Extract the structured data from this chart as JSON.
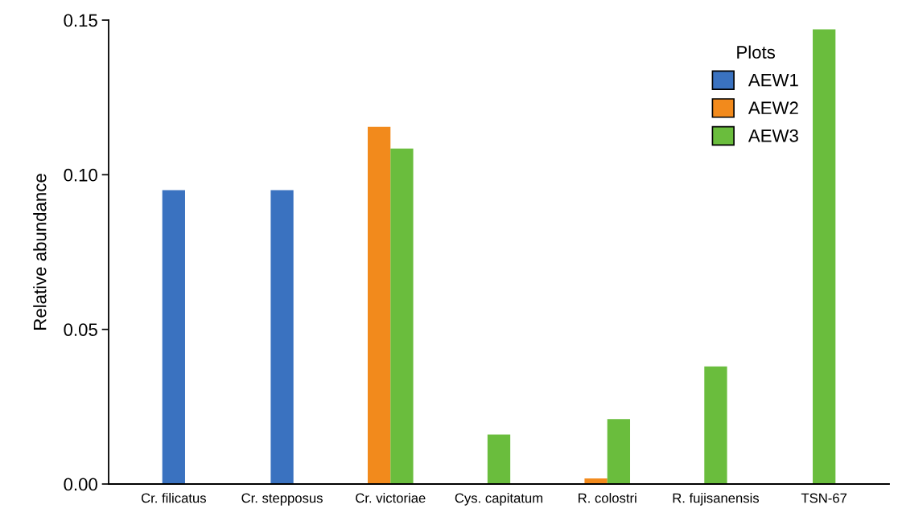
{
  "chart_data": {
    "type": "bar",
    "ylabel": "Relative abundance",
    "legend_title": "Plots",
    "legend": "top right",
    "categories": [
      "Cr. filicatus",
      "Cr. stepposus",
      "Cr. victoriae",
      "Cys. capitatum",
      "R. colostri",
      "R. fujisanensis",
      "TSN-67"
    ],
    "series": [
      {
        "name": "AEW1",
        "color": "#3a72c0",
        "values": [
          0.095,
          0.095,
          null,
          null,
          null,
          null,
          null
        ]
      },
      {
        "name": "AEW2",
        "color": "#f28a1c",
        "values": [
          null,
          null,
          0.1155,
          null,
          0.0018,
          null,
          null
        ]
      },
      {
        "name": "AEW3",
        "color": "#6abd3d",
        "values": [
          null,
          null,
          0.1085,
          0.016,
          0.021,
          0.038,
          0.147
        ]
      }
    ],
    "ylim": [
      0,
      0.15
    ],
    "yticks": [
      {
        "value": 0,
        "label": "0.00"
      },
      {
        "value": 0.05,
        "label": "0.05"
      },
      {
        "value": 0.1,
        "label": "0.10"
      },
      {
        "value": 0.15,
        "label": "0.15"
      }
    ],
    "grid": false
  }
}
